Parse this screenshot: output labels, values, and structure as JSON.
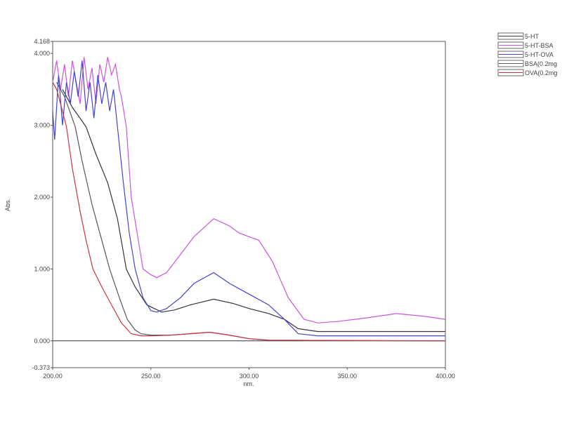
{
  "chart_data": {
    "type": "line",
    "title": "",
    "xlabel": "nm.",
    "ylabel": "Abs.",
    "xlim": [
      200,
      400
    ],
    "ylim": [
      -0.373,
      4.168
    ],
    "x_ticks": [
      "200.00",
      "250.00",
      "300.00",
      "350.00",
      "400.00"
    ],
    "x_tick_values": [
      200,
      250,
      300,
      350,
      400
    ],
    "y_ticks": [
      "4.168",
      "4.000",
      "3.000",
      "2.000",
      "1.000",
      "0.000",
      "-0.373"
    ],
    "y_tick_values": [
      4.168,
      4.0,
      3.0,
      2.0,
      1.0,
      0.0,
      -0.373
    ],
    "grid": false,
    "baseline": 0,
    "legend_placement": "top-right",
    "series": [
      {
        "name": "5-HT",
        "color": "#333344",
        "x": [
          205,
          210,
          217,
          222,
          228,
          233,
          237.5,
          242,
          248,
          255.5,
          262,
          270,
          282,
          292,
          300,
          310,
          318,
          325,
          335,
          400
        ],
        "y": [
          3.5,
          3.25,
          2.98,
          2.6,
          2.2,
          1.7,
          1.0,
          0.75,
          0.5,
          0.4,
          0.43,
          0.5,
          0.58,
          0.52,
          0.45,
          0.38,
          0.3,
          0.17,
          0.13,
          0.13
        ]
      },
      {
        "name": "5-HT-BSA",
        "color": "#cc55dd",
        "x": [
          200,
          202,
          204,
          206,
          208,
          210,
          212,
          214,
          216,
          218,
          220,
          222,
          224,
          226,
          228,
          230,
          232,
          234,
          235,
          237.5,
          240,
          243,
          246,
          250,
          253,
          258,
          265,
          272,
          282,
          290,
          295,
          300,
          305,
          312,
          320,
          328,
          335,
          345,
          360,
          375,
          390,
          400
        ],
        "y": [
          3.6,
          3.9,
          3.5,
          3.85,
          3.4,
          3.9,
          3.6,
          3.3,
          3.95,
          3.5,
          3.8,
          3.3,
          3.85,
          3.6,
          3.95,
          3.7,
          3.85,
          3.5,
          3.4,
          2.98,
          2.0,
          1.5,
          1.0,
          0.92,
          0.88,
          0.95,
          1.2,
          1.45,
          1.7,
          1.6,
          1.5,
          1.45,
          1.4,
          1.1,
          0.6,
          0.3,
          0.25,
          0.27,
          0.32,
          0.38,
          0.34,
          0.3
        ]
      },
      {
        "name": "5-HT-OVA",
        "color": "#4444cc",
        "x": [
          200,
          201,
          203,
          205,
          207,
          209,
          211,
          213,
          215,
          217,
          219,
          221,
          223,
          225,
          227,
          229,
          231,
          233,
          236,
          239,
          242,
          246,
          250,
          253,
          258,
          265,
          272,
          282,
          290,
          300,
          310,
          318,
          325,
          335,
          400
        ],
        "y": [
          3.2,
          2.8,
          3.7,
          3.0,
          3.6,
          3.3,
          3.75,
          3.4,
          3.9,
          3.2,
          3.6,
          3.1,
          3.7,
          3.3,
          3.6,
          3.2,
          3.5,
          2.98,
          2.2,
          1.5,
          1.0,
          0.6,
          0.42,
          0.4,
          0.45,
          0.6,
          0.8,
          0.95,
          0.8,
          0.65,
          0.5,
          0.3,
          0.1,
          0.07,
          0.07
        ]
      },
      {
        "name": "BSA(0.2mg",
        "color": "#555566",
        "x": [
          202,
          206,
          211.5,
          215,
          220,
          224,
          229,
          234,
          238,
          242,
          245,
          250,
          260,
          270,
          280,
          290,
          300,
          310,
          400
        ],
        "y": [
          3.6,
          3.4,
          2.98,
          2.5,
          1.9,
          1.5,
          1.0,
          0.6,
          0.3,
          0.15,
          0.1,
          0.08,
          0.08,
          0.1,
          0.12,
          0.08,
          0.03,
          0.01,
          0.0
        ]
      },
      {
        "name": "OVA(0.2mg",
        "color": "#cc3344",
        "x": [
          200,
          202,
          204,
          207,
          210,
          214,
          217,
          220.5,
          225,
          230,
          235,
          240,
          245,
          250,
          260,
          270,
          280,
          290,
          300,
          310,
          400
        ],
        "y": [
          3.6,
          3.5,
          3.3,
          2.98,
          2.4,
          1.8,
          1.4,
          1.0,
          0.75,
          0.5,
          0.25,
          0.1,
          0.07,
          0.07,
          0.08,
          0.1,
          0.12,
          0.08,
          0.03,
          0.01,
          0.0
        ]
      }
    ]
  }
}
